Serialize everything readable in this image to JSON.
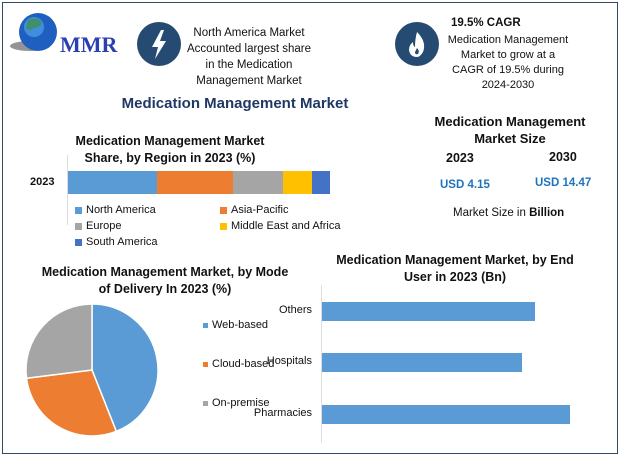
{
  "logo": {
    "text": "MMR"
  },
  "highlights": [
    {
      "icon": "lightning-icon",
      "text": "North America Market Accounted largest share in the Medication Management Market"
    },
    {
      "icon": "flame-icon",
      "title": "19.5% CAGR",
      "text": "Medication Management Market to grow at a CAGR of 19.5% during 2024-2030"
    }
  ],
  "main_title": "Medication Management Market",
  "market_size": {
    "title": "Medication Management Market Size",
    "years": [
      "2023",
      "2030"
    ],
    "values": [
      "USD 4.15",
      "USD 14.47"
    ],
    "note_prefix": "Market Size in ",
    "note_bold": "Billion"
  },
  "colors": {
    "blue": "#5b9bd5",
    "orange": "#ed7d31",
    "gray": "#a5a5a5",
    "yellow": "#ffc000",
    "darkblue": "#4472c4",
    "title": "#1f3864",
    "value": "#1e73be"
  },
  "chart_data": [
    {
      "type": "bar",
      "orientation": "horizontal-stacked",
      "title": "Medication Management Market Share, by Region in 2023 (%)",
      "categories": [
        "2023"
      ],
      "series": [
        {
          "name": "North America",
          "values": [
            34
          ],
          "color": "#5b9bd5"
        },
        {
          "name": "Asia-Pacific",
          "values": [
            29
          ],
          "color": "#ed7d31"
        },
        {
          "name": "Europe",
          "values": [
            19
          ],
          "color": "#a5a5a5"
        },
        {
          "name": "Middle East and Africa",
          "values": [
            11
          ],
          "color": "#ffc000"
        },
        {
          "name": "South America",
          "values": [
            7
          ],
          "color": "#4472c4"
        }
      ],
      "legend": "bottom"
    },
    {
      "type": "pie",
      "title": "Medication Management Market, by Mode of Delivery In 2023 (%)",
      "labels": [
        "Web-based",
        "Cloud-based",
        "On-premise"
      ],
      "values": [
        44,
        29,
        27
      ],
      "colors": [
        "#5b9bd5",
        "#ed7d31",
        "#a5a5a5"
      ],
      "legend": "right"
    },
    {
      "type": "bar",
      "orientation": "horizontal",
      "title": "Medication Management Market, by End User in 2023 (Bn)",
      "categories": [
        "Others",
        "Hospitals",
        "Pharmacies"
      ],
      "values": [
        1.34,
        1.26,
        1.56
      ],
      "color": "#5b9bd5",
      "xlim": [
        0,
        1.7
      ]
    }
  ]
}
